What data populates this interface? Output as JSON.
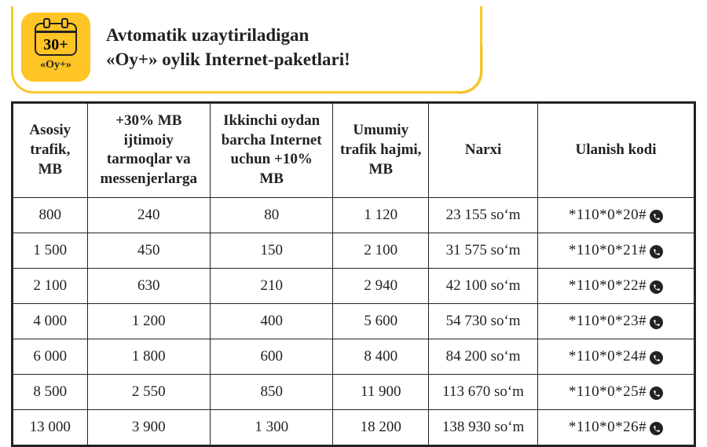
{
  "banner": {
    "icon_calendar_text": "30+",
    "icon_label": "«Oy+»",
    "title_line1": "Avtomatik uzaytiriladigan",
    "title_line2": "«Oy+» oylik Internet-paketlari!"
  },
  "table": {
    "headers": [
      "Asosiy trafik, MB",
      "+30% MB ijtimoiy tarmoqlar va messenjerlarga",
      "Ikkinchi oydan barcha Internet uchun +10% MB",
      "Umumiy trafik hajmi, MB",
      "Narxi",
      "Ulanish kodi"
    ],
    "rows": [
      {
        "base": "800",
        "bonus30": "240",
        "bonus10": "80",
        "total": "1 120",
        "price": "23 155 soʻm",
        "code": "*110*0*20#"
      },
      {
        "base": "1 500",
        "bonus30": "450",
        "bonus10": "150",
        "total": "2 100",
        "price": "31 575 soʻm",
        "code": "*110*0*21#"
      },
      {
        "base": "2 100",
        "bonus30": "630",
        "bonus10": "210",
        "total": "2 940",
        "price": "42 100 soʻm",
        "code": "*110*0*22#"
      },
      {
        "base": "4 000",
        "bonus30": "1 200",
        "bonus10": "400",
        "total": "5 600",
        "price": "54 730 soʻm",
        "code": "*110*0*23#"
      },
      {
        "base": "6 000",
        "bonus30": "1 800",
        "bonus10": "600",
        "total": "8 400",
        "price": "84 200 soʻm",
        "code": "*110*0*24#"
      },
      {
        "base": "8 500",
        "bonus30": "2 550",
        "bonus10": "850",
        "total": "11 900",
        "price": "113 670 soʻm",
        "code": "*110*0*25#"
      },
      {
        "base": "13 000",
        "bonus30": "3 900",
        "bonus10": "1 300",
        "total": "18 200",
        "price": "138 930 soʻm",
        "code": "*110*0*26#"
      }
    ]
  },
  "colors": {
    "accent": "#ffc425",
    "border": "#222222",
    "text": "#222222",
    "background": "#ffffff"
  },
  "typography": {
    "banner_fontsize": 23,
    "cell_fontsize": 19,
    "header_fontsize": 19
  }
}
